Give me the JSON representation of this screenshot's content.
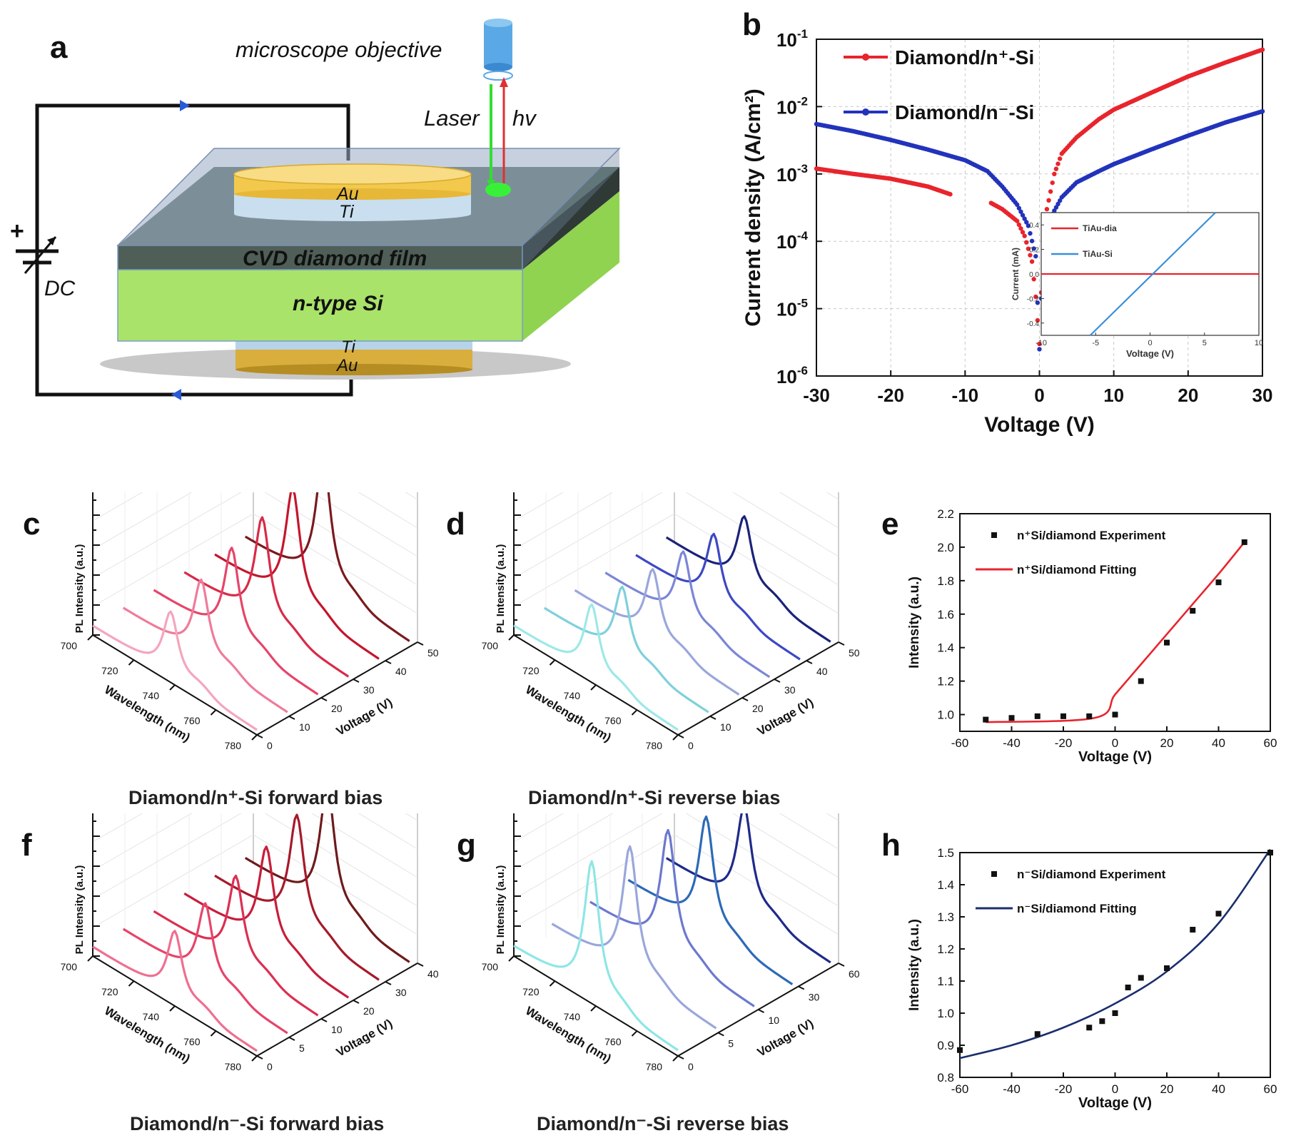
{
  "panel_letters": {
    "a": "a",
    "b": "b",
    "c": "c",
    "d": "d",
    "e": "e",
    "f": "f",
    "g": "g",
    "h": "h"
  },
  "schematic": {
    "objective": "microscope objective",
    "laser": "Laser",
    "hv": "hv",
    "au_top": "Au",
    "ti_top": "Ti",
    "film": "CVD diamond film",
    "si": "n-type Si",
    "ti_bottom": "Ti",
    "au_bottom": "Au",
    "plus": "+",
    "dc": "DC",
    "colors": {
      "au": "#f2c94c",
      "ti": "#c9dff0",
      "film": "#5b7064",
      "si": "#a9e36a",
      "laser": "#33dd33",
      "hv": "#e03030"
    }
  },
  "captions": {
    "c": "Diamond/n⁺-Si  forward bias",
    "d": "Diamond/n⁺-Si  reverse bias",
    "f": "Diamond/n⁻-Si  forward bias",
    "g": "Diamond/n⁻-Si  reverse bias"
  },
  "chart_data": [
    {
      "id": "b",
      "type": "scatter",
      "scale_y": "log",
      "xlabel": "Voltage (V)",
      "ylabel": "Current density (A/cm²)",
      "xlim": [
        -30,
        30
      ],
      "ylim_exp": [
        -6,
        -1
      ],
      "x_ticks": [
        "-30",
        "-20",
        "-10",
        "0",
        "10",
        "20",
        "30"
      ],
      "y_ticks": [
        {
          "base": "10",
          "exp": "-6"
        },
        {
          "base": "10",
          "exp": "-5"
        },
        {
          "base": "10",
          "exp": "-4"
        },
        {
          "base": "10",
          "exp": "-3"
        },
        {
          "base": "10",
          "exp": "-2"
        },
        {
          "base": "10",
          "exp": "-1"
        }
      ],
      "legend_position": "top-left",
      "grid": true,
      "series": [
        {
          "name": "Diamond/n⁺-Si",
          "color": "#e8242c",
          "points": [
            [
              -30,
              0.0012
            ],
            [
              -25,
              0.001
            ],
            [
              -20,
              0.00085
            ],
            [
              -15,
              0.00065
            ],
            [
              -12,
              0.0005
            ],
            [
              -6.5,
              0.00037
            ],
            [
              -5,
              0.0003
            ],
            [
              -3,
              0.0002
            ],
            [
              -2,
              0.00012
            ],
            [
              -1,
              5e-05
            ],
            [
              -0.5,
              1.5e-05
            ],
            [
              0,
              3e-06
            ],
            [
              0.5,
              0.0001
            ],
            [
              1,
              0.0003
            ],
            [
              2,
              0.001
            ],
            [
              3,
              0.002
            ],
            [
              5,
              0.0035
            ],
            [
              8,
              0.0065
            ],
            [
              10,
              0.009
            ],
            [
              15,
              0.016
            ],
            [
              20,
              0.028
            ],
            [
              25,
              0.045
            ],
            [
              30,
              0.07
            ]
          ]
        },
        {
          "name": "Diamond/n⁻-Si",
          "color": "#2233bb",
          "points": [
            [
              -30,
              0.0055
            ],
            [
              -25,
              0.0043
            ],
            [
              -20,
              0.0032
            ],
            [
              -15,
              0.0023
            ],
            [
              -10,
              0.0016
            ],
            [
              -7,
              0.0011
            ],
            [
              -5,
              0.00065
            ],
            [
              -3,
              0.00035
            ],
            [
              -1.5,
              0.00017
            ],
            [
              -0.5,
              6e-05
            ],
            [
              0,
              2.5e-06
            ],
            [
              0.5,
              8e-05
            ],
            [
              1,
              0.00018
            ],
            [
              3,
              0.00045
            ],
            [
              5,
              0.00075
            ],
            [
              8,
              0.0011
            ],
            [
              10,
              0.0014
            ],
            [
              15,
              0.0023
            ],
            [
              20,
              0.0037
            ],
            [
              25,
              0.0058
            ],
            [
              30,
              0.0085
            ]
          ]
        }
      ],
      "inset": {
        "xlabel": "Voltage (V)",
        "ylabel": "Current (mA)",
        "xlim": [
          -10,
          10
        ],
        "ylim": [
          -0.5,
          0.5
        ],
        "x_ticks": [
          "-10",
          "-5",
          "0",
          "5",
          "10"
        ],
        "y_ticks": [
          "-0.4",
          "-0.2",
          "0.0",
          "0.2",
          "0.4"
        ],
        "series": [
          {
            "name": "TiAu-dia",
            "color": "#e8242c",
            "points": [
              [
                -10,
                0.0
              ],
              [
                10,
                0.0
              ]
            ]
          },
          {
            "name": "TiAu-Si",
            "color": "#3b8fd9",
            "points": [
              [
                -5.5,
                -0.5
              ],
              [
                6,
                0.5
              ]
            ]
          }
        ]
      }
    },
    {
      "id": "c",
      "type": "line",
      "subtype": "3d-waterfall",
      "xlabel": "Wavelength (nm)",
      "ylabel": "Voltage (V)",
      "zlabel": "PL Intensity (a.u.)",
      "x_ticks": [
        "700",
        "720",
        "740",
        "760",
        "780"
      ],
      "y_ticks": [
        "0",
        "10",
        "20",
        "30",
        "40",
        "50"
      ],
      "peak_wavelength": 738,
      "series": [
        {
          "voltage": 0,
          "peak": 0.45,
          "color": "#f4a6bc"
        },
        {
          "voltage": 10,
          "peak": 0.55,
          "color": "#ef7b9a"
        },
        {
          "voltage": 20,
          "peak": 0.65,
          "color": "#e6456a"
        },
        {
          "voltage": 30,
          "peak": 0.74,
          "color": "#d92a48"
        },
        {
          "voltage": 40,
          "peak": 0.82,
          "color": "#c4162c"
        },
        {
          "voltage": 50,
          "peak": 0.92,
          "color": "#7a1a1e"
        }
      ]
    },
    {
      "id": "d",
      "type": "line",
      "subtype": "3d-waterfall",
      "xlabel": "Wavelength (nm)",
      "ylabel": "Voltage (V)",
      "zlabel": "PL Intensity (a.u.)",
      "x_ticks": [
        "700",
        "720",
        "740",
        "760",
        "780"
      ],
      "y_ticks": [
        "0",
        "10",
        "20",
        "30",
        "40",
        "50"
      ],
      "peak_wavelength": 738,
      "series": [
        {
          "voltage": 0,
          "peak": 0.5,
          "color": "#9ee8e8"
        },
        {
          "voltage": 10,
          "peak": 0.5,
          "color": "#7fd0dc"
        },
        {
          "voltage": 20,
          "peak": 0.5,
          "color": "#9aa7dc"
        },
        {
          "voltage": 30,
          "peak": 0.5,
          "color": "#7c86d6"
        },
        {
          "voltage": 40,
          "peak": 0.5,
          "color": "#3d48c4"
        },
        {
          "voltage": 50,
          "peak": 0.5,
          "color": "#1a227a"
        }
      ]
    },
    {
      "id": "e",
      "type": "scatter",
      "xlabel": "Voltage (V)",
      "ylabel": "Intensity (a.u.)",
      "xlim": [
        -60,
        60
      ],
      "ylim": [
        0.9,
        2.2
      ],
      "x_ticks": [
        "-60",
        "-40",
        "-20",
        "0",
        "20",
        "40",
        "60"
      ],
      "y_ticks": [
        "1.0",
        "1.2",
        "1.4",
        "1.6",
        "1.8",
        "2.0",
        "2.2"
      ],
      "legend_position": "top-left",
      "legend": [
        {
          "label": "n⁺Si/diamond Experiment",
          "kind": "point",
          "color": "#111111"
        },
        {
          "label": "n⁺Si/diamond Fitting",
          "kind": "line",
          "color": "#e8242c"
        }
      ],
      "points": [
        [
          -50,
          0.97
        ],
        [
          -40,
          0.98
        ],
        [
          -30,
          0.99
        ],
        [
          -20,
          0.99
        ],
        [
          -10,
          0.99
        ],
        [
          0,
          1.0
        ],
        [
          10,
          1.2
        ],
        [
          20,
          1.43
        ],
        [
          30,
          1.62
        ],
        [
          40,
          1.79
        ],
        [
          50,
          2.03
        ]
      ],
      "fit": [
        [
          -50,
          0.955
        ],
        [
          -8,
          0.98
        ],
        [
          0,
          1.12
        ],
        [
          10,
          1.3
        ],
        [
          20,
          1.48
        ],
        [
          30,
          1.66
        ],
        [
          40,
          1.84
        ],
        [
          50,
          2.03
        ]
      ]
    },
    {
      "id": "f",
      "type": "line",
      "subtype": "3d-waterfall",
      "xlabel": "Wavelength (nm)",
      "ylabel": "Voltage (V)",
      "zlabel": "PL Intensity (a.u.)",
      "x_ticks": [
        "700",
        "720",
        "740",
        "760",
        "780"
      ],
      "y_ticks": [
        "0",
        "5",
        "10",
        "20",
        "30",
        "40"
      ],
      "peak_wavelength": 740,
      "series": [
        {
          "voltage": 0,
          "peak": 0.48,
          "color": "#ef6f90"
        },
        {
          "voltage": 5,
          "peak": 0.55,
          "color": "#e6456a"
        },
        {
          "voltage": 10,
          "peak": 0.62,
          "color": "#dc2f52"
        },
        {
          "voltage": 20,
          "peak": 0.7,
          "color": "#c81d3a"
        },
        {
          "voltage": 30,
          "peak": 0.8,
          "color": "#a51a2a"
        },
        {
          "voltage": 40,
          "peak": 0.88,
          "color": "#6e1a1c"
        }
      ]
    },
    {
      "id": "g",
      "type": "line",
      "subtype": "3d-waterfall",
      "xlabel": "Wavelength (nm)",
      "ylabel": "Voltage (V)",
      "zlabel": "PL Intensity (a.u.)",
      "x_ticks": [
        "700",
        "720",
        "740",
        "760",
        "780"
      ],
      "y_ticks": [
        "0",
        "5",
        "10",
        "30",
        "60"
      ],
      "peak_wavelength": 738,
      "series": [
        {
          "voltage": 0,
          "peak": 0.95,
          "color": "#8fe6e6"
        },
        {
          "voltage": 5,
          "peak": 0.9,
          "color": "#9aa7dc"
        },
        {
          "voltage": 10,
          "peak": 0.86,
          "color": "#6c78d0"
        },
        {
          "voltage": 30,
          "peak": 0.8,
          "color": "#2d6ab8"
        },
        {
          "voltage": 60,
          "peak": 0.72,
          "color": "#1e2a8a"
        }
      ]
    },
    {
      "id": "h",
      "type": "scatter",
      "xlabel": "Voltage (V)",
      "ylabel": "Intensity (a.u.)",
      "xlim": [
        -60,
        60
      ],
      "ylim": [
        0.8,
        1.5
      ],
      "x_ticks": [
        "-60",
        "-40",
        "-20",
        "0",
        "20",
        "40",
        "60"
      ],
      "y_ticks": [
        "0.8",
        "0.9",
        "1.0",
        "1.1",
        "1.2",
        "1.3",
        "1.4",
        "1.5"
      ],
      "legend_position": "top-left",
      "legend": [
        {
          "label": "n⁻Si/diamond Experiment",
          "kind": "point",
          "color": "#111111"
        },
        {
          "label": "n⁻Si/diamond Fitting",
          "kind": "line",
          "color": "#1a2e6e"
        }
      ],
      "points": [
        [
          -60,
          0.885
        ],
        [
          -30,
          0.935
        ],
        [
          -10,
          0.955
        ],
        [
          -5,
          0.975
        ],
        [
          0,
          1.0
        ],
        [
          5,
          1.08
        ],
        [
          10,
          1.11
        ],
        [
          20,
          1.14
        ],
        [
          30,
          1.26
        ],
        [
          40,
          1.31
        ],
        [
          60,
          1.5
        ]
      ],
      "fit": [
        [
          -60,
          0.86
        ],
        [
          -40,
          0.9
        ],
        [
          -20,
          0.955
        ],
        [
          0,
          1.03
        ],
        [
          20,
          1.13
        ],
        [
          40,
          1.28
        ],
        [
          60,
          1.51
        ]
      ]
    }
  ]
}
